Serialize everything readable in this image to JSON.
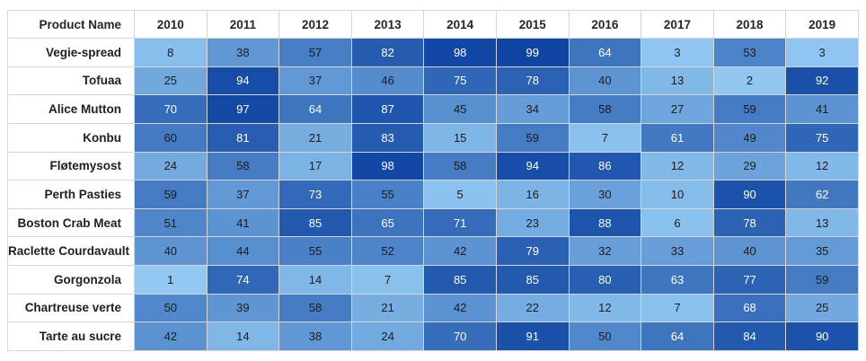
{
  "chart_data": {
    "type": "heatmap",
    "corner_label": "Product Name",
    "columns": [
      "2010",
      "2011",
      "2012",
      "2013",
      "2014",
      "2015",
      "2016",
      "2017",
      "2018",
      "2019"
    ],
    "rows": [
      "Vegie-spread",
      "Tofuaa",
      "Alice Mutton",
      "Konbu",
      "Fløtemysost",
      "Perth Pasties",
      "Boston Crab Meat",
      "Raclette Courdavault",
      "Gorgonzola",
      "Chartreuse verte",
      "Tarte au sucre"
    ],
    "values": [
      [
        8,
        38,
        57,
        82,
        98,
        99,
        64,
        3,
        53,
        3
      ],
      [
        25,
        94,
        37,
        46,
        75,
        78,
        40,
        13,
        2,
        92
      ],
      [
        70,
        97,
        64,
        87,
        45,
        34,
        58,
        27,
        59,
        41
      ],
      [
        60,
        81,
        21,
        83,
        15,
        59,
        7,
        61,
        49,
        75
      ],
      [
        24,
        58,
        17,
        98,
        58,
        94,
        86,
        12,
        29,
        12
      ],
      [
        59,
        37,
        73,
        55,
        5,
        16,
        30,
        10,
        90,
        62
      ],
      [
        51,
        41,
        85,
        65,
        71,
        23,
        88,
        6,
        78,
        13
      ],
      [
        40,
        44,
        55,
        52,
        42,
        79,
        32,
        33,
        40,
        35
      ],
      [
        1,
        74,
        14,
        7,
        85,
        85,
        80,
        63,
        77,
        59
      ],
      [
        50,
        39,
        58,
        21,
        42,
        22,
        12,
        7,
        68,
        25
      ],
      [
        42,
        14,
        38,
        24,
        70,
        91,
        50,
        64,
        84,
        90
      ]
    ],
    "value_range": [
      0,
      100
    ],
    "palette": {
      "low": "#93C9F2",
      "high": "#0E45A3"
    },
    "light_text_threshold": 61,
    "grid": true,
    "legend_position": "none"
  },
  "colors": {
    "background": "#FFFFFF",
    "grid_border": "#D6D6D6",
    "header_text": "#262626",
    "cell_text_dark": "#1C1C1C",
    "cell_text_light": "#FFFFFF"
  }
}
